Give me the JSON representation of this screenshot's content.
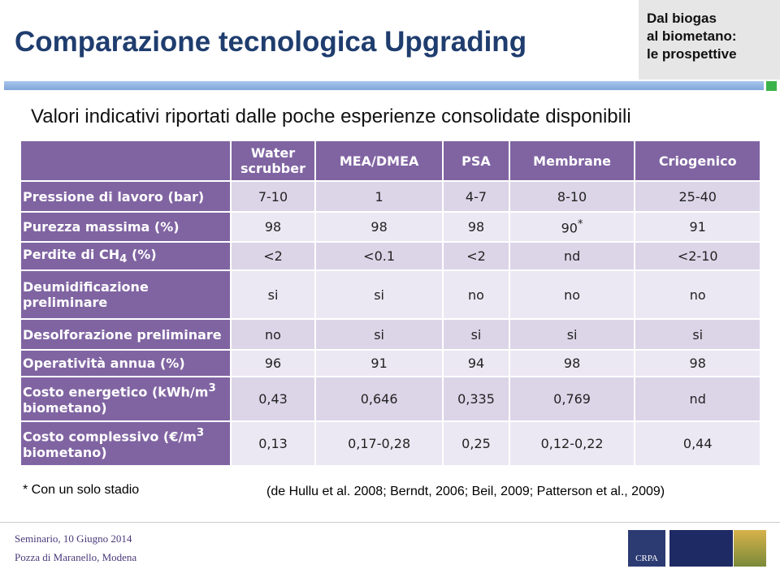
{
  "header": {
    "title": "Comparazione tecnologica Upgrading",
    "side": [
      "Dal biogas",
      "al biometano:",
      "le prospettive"
    ]
  },
  "subtitle": "Valori indicativi riportati dalle poche esperienze consolidate disponibili",
  "table": {
    "columns": [
      "Water scrubber",
      "MEA/DMEA",
      "PSA",
      "Membrane",
      "Criogenico"
    ],
    "rows": [
      {
        "label": [
          "Pressione di lavoro (bar)"
        ],
        "cells": [
          "7-10",
          "1",
          "4-7",
          "8-10",
          "25-40"
        ]
      },
      {
        "label": [
          "Purezza massima (%)"
        ],
        "cells": [
          "98",
          "98",
          "98",
          [
            "90",
            "*"
          ],
          "91"
        ]
      },
      {
        "label": [
          "Perdite di CH",
          "4",
          " (%)"
        ],
        "cells": [
          "<2",
          "<0.1",
          "<2",
          "nd",
          "<2-10"
        ]
      },
      {
        "label": [
          "Deumidificazione preliminare"
        ],
        "cells": [
          "si",
          "si",
          "no",
          "no",
          "no"
        ]
      },
      {
        "label": [
          "Desolforazione preliminare"
        ],
        "cells": [
          "no",
          "si",
          "si",
          "si",
          "si"
        ]
      },
      {
        "label": [
          "Operatività annua (%)"
        ],
        "cells": [
          "96",
          "91",
          "94",
          "98",
          "98"
        ]
      },
      {
        "label": [
          "Costo energetico (kWh/m",
          "3",
          " biometano)"
        ],
        "cells": [
          "0,43",
          "0,646",
          "0,335",
          "0,769",
          "nd"
        ]
      },
      {
        "label": [
          "Costo complessivo (€/m",
          "3",
          " biometano)"
        ],
        "cells": [
          "0,13",
          "0,17-0,28",
          "0,25",
          "0,12-0,22",
          "0,44"
        ]
      }
    ]
  },
  "footnote": "* Con un solo stadio",
  "citation": "(de Hullu et al. 2008; Berndt, 2006; Beil, 2009; Patterson et al., 2009)",
  "footer": {
    "event": "Seminario, 10 Giugno 2014",
    "place": "Pozza di Maranello, Modena",
    "logo": "CRPA"
  }
}
